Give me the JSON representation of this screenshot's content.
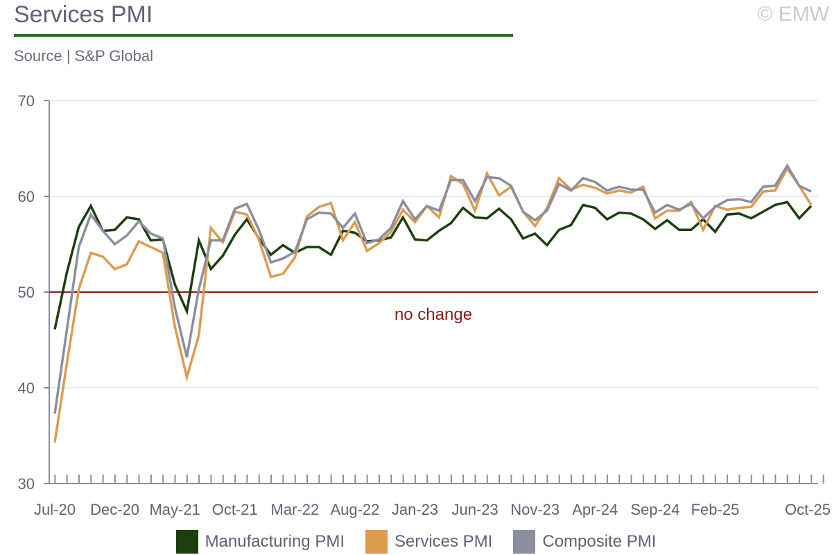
{
  "header": {
    "title": "Services PMI",
    "watermark": "© EMW",
    "source": "Source | S&P Global"
  },
  "chart_data": {
    "type": "line",
    "title": "Services PMI",
    "xlabel": "",
    "ylabel": "",
    "ylim": [
      30,
      70
    ],
    "yticks": [
      30,
      40,
      50,
      60,
      70
    ],
    "grid": true,
    "legend_position": "bottom",
    "categories": [
      "Jul-20",
      "Aug-20",
      "Sep-20",
      "Oct-20",
      "Nov-20",
      "Dec-20",
      "Jan-21",
      "Feb-21",
      "Mar-21",
      "Apr-21",
      "May-21",
      "Jun-21",
      "Jul-21",
      "Aug-21",
      "Sep-21",
      "Oct-21",
      "Nov-21",
      "Dec-21",
      "Jan-22",
      "Feb-22",
      "Mar-22",
      "Apr-22",
      "May-22",
      "Jun-22",
      "Jul-22",
      "Aug-22",
      "Sep-22",
      "Oct-22",
      "Nov-22",
      "Dec-22",
      "Jan-23",
      "Feb-23",
      "Mar-23",
      "Apr-23",
      "May-23",
      "Jun-23",
      "Jul-23",
      "Aug-23",
      "Sep-23",
      "Oct-23",
      "Nov-23",
      "Dec-23",
      "Jan-24",
      "Feb-24",
      "Mar-24",
      "Apr-24",
      "May-24",
      "Jun-24",
      "Jul-24",
      "Aug-24",
      "Sep-24",
      "Oct-24",
      "Nov-24",
      "Dec-24",
      "Jan-25",
      "Feb-25",
      "Mar-25",
      "Apr-25",
      "May-25",
      "Jun-25",
      "Jul-25",
      "Aug-25",
      "Sep-25",
      "Oct-25"
    ],
    "xtick_labels": [
      "Jul-20",
      "Dec-20",
      "May-21",
      "Oct-21",
      "Mar-22",
      "Aug-22",
      "Jan-23",
      "Jun-23",
      "Nov-23",
      "Apr-24",
      "Sep-24",
      "Feb-25",
      "Oct-25"
    ],
    "series": [
      {
        "name": "Manufacturing PMI",
        "color": "#1c3f0e",
        "values": [
          46.1,
          52.0,
          56.8,
          59.0,
          56.4,
          56.5,
          57.8,
          57.6,
          55.4,
          55.5,
          50.8,
          48.0,
          55.4,
          52.4,
          53.8,
          56.0,
          57.6,
          55.6,
          53.9,
          54.9,
          54.1,
          54.7,
          54.7,
          53.9,
          56.4,
          56.2,
          55.3,
          55.4,
          55.7,
          57.8,
          55.5,
          55.4,
          56.4,
          57.2,
          58.8,
          57.8,
          57.7,
          58.7,
          57.6,
          55.6,
          56.1,
          54.9,
          56.5,
          57.0,
          59.1,
          58.8,
          57.6,
          58.3,
          58.2,
          57.6,
          56.6,
          57.5,
          56.5,
          56.5,
          57.6,
          56.3,
          58.1,
          58.2,
          57.7,
          58.4,
          59.1,
          59.4,
          57.7,
          59.0
        ]
      },
      {
        "name": "Services PMI",
        "color": "#dc9b4e",
        "values": [
          34.3,
          42.5,
          50.3,
          54.1,
          53.7,
          52.4,
          52.9,
          55.3,
          54.7,
          54.1,
          46.4,
          41.1,
          45.5,
          56.7,
          55.2,
          58.4,
          58.1,
          55.5,
          51.6,
          51.9,
          53.6,
          57.9,
          58.9,
          59.3,
          55.4,
          57.3,
          54.3,
          55.1,
          56.3,
          58.6,
          57.3,
          59.0,
          57.8,
          62.1,
          61.3,
          58.5,
          62.4,
          60.1,
          61.0,
          58.4,
          56.9,
          58.8,
          61.9,
          60.7,
          61.2,
          60.9,
          60.3,
          60.6,
          60.4,
          61.0,
          57.7,
          58.5,
          58.5,
          59.4,
          56.5,
          59.0,
          58.6,
          58.8,
          58.9,
          60.5,
          60.6,
          62.9,
          61.1,
          59.1
        ]
      },
      {
        "name": "Composite PMI",
        "color": "#8a8e9f",
        "values": [
          37.3,
          46.0,
          54.7,
          58.1,
          56.4,
          55.0,
          55.9,
          57.4,
          56.1,
          55.6,
          48.4,
          43.2,
          50.3,
          55.4,
          55.4,
          58.7,
          59.2,
          56.5,
          53.1,
          53.5,
          54.2,
          57.6,
          58.3,
          58.2,
          56.7,
          58.2,
          55.1,
          55.5,
          56.7,
          59.5,
          57.6,
          59.0,
          58.5,
          61.7,
          61.7,
          59.5,
          62.0,
          61.9,
          61.1,
          58.4,
          57.5,
          58.5,
          61.3,
          60.6,
          61.9,
          61.5,
          60.6,
          61.0,
          60.7,
          60.7,
          58.3,
          59.1,
          58.6,
          59.2,
          57.7,
          58.9,
          59.6,
          59.7,
          59.4,
          61.0,
          61.1,
          63.2,
          61.1,
          60.5
        ]
      }
    ],
    "reference_line": {
      "value": 50,
      "label": "no change",
      "color": "#8e1b12"
    }
  }
}
